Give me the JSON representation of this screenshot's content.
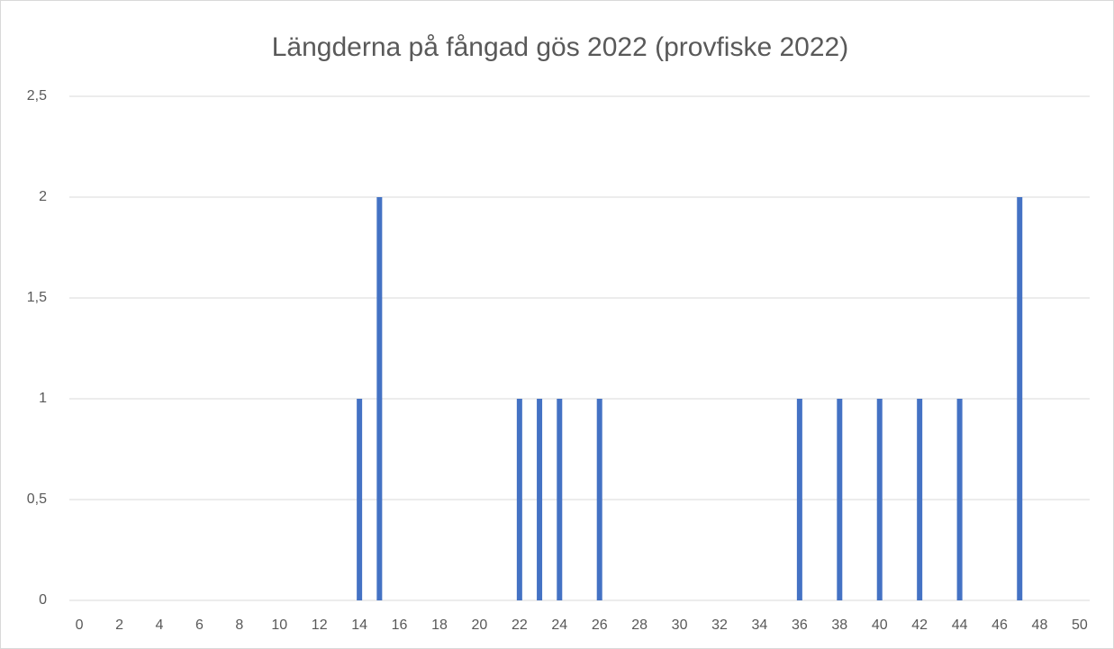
{
  "chart_data": {
    "type": "bar",
    "title": "Längderna på fångad gös 2022 (provfiske 2022)",
    "categories": [
      0,
      null,
      2,
      null,
      4,
      null,
      6,
      null,
      8,
      null,
      10,
      null,
      12,
      null,
      14,
      null,
      16,
      null,
      18,
      null,
      20,
      null,
      22,
      null,
      24,
      null,
      26,
      null,
      28,
      null,
      30,
      null,
      32,
      null,
      34,
      null,
      36,
      null,
      38,
      null,
      40,
      null,
      42,
      null,
      44,
      null,
      46,
      null,
      48,
      null,
      50
    ],
    "values": [
      0,
      0,
      0,
      0,
      0,
      0,
      0,
      0,
      0,
      0,
      0,
      0,
      0,
      0,
      1,
      2,
      0,
      0,
      0,
      0,
      0,
      0,
      1,
      1,
      1,
      0,
      1,
      0,
      0,
      0,
      0,
      0,
      0,
      0,
      0,
      0,
      1,
      0,
      1,
      0,
      1,
      0,
      1,
      0,
      1,
      0,
      0,
      2,
      0,
      0,
      0
    ],
    "color": "#4472c4",
    "ylim": [
      0,
      2.5
    ],
    "yticks": [
      0,
      {
        "value": 0.5,
        "label": "0,5"
      },
      1,
      {
        "value": 1.5,
        "label": "1,5"
      },
      2,
      {
        "value": 2.5,
        "label": "2,5"
      }
    ],
    "grid": true
  }
}
